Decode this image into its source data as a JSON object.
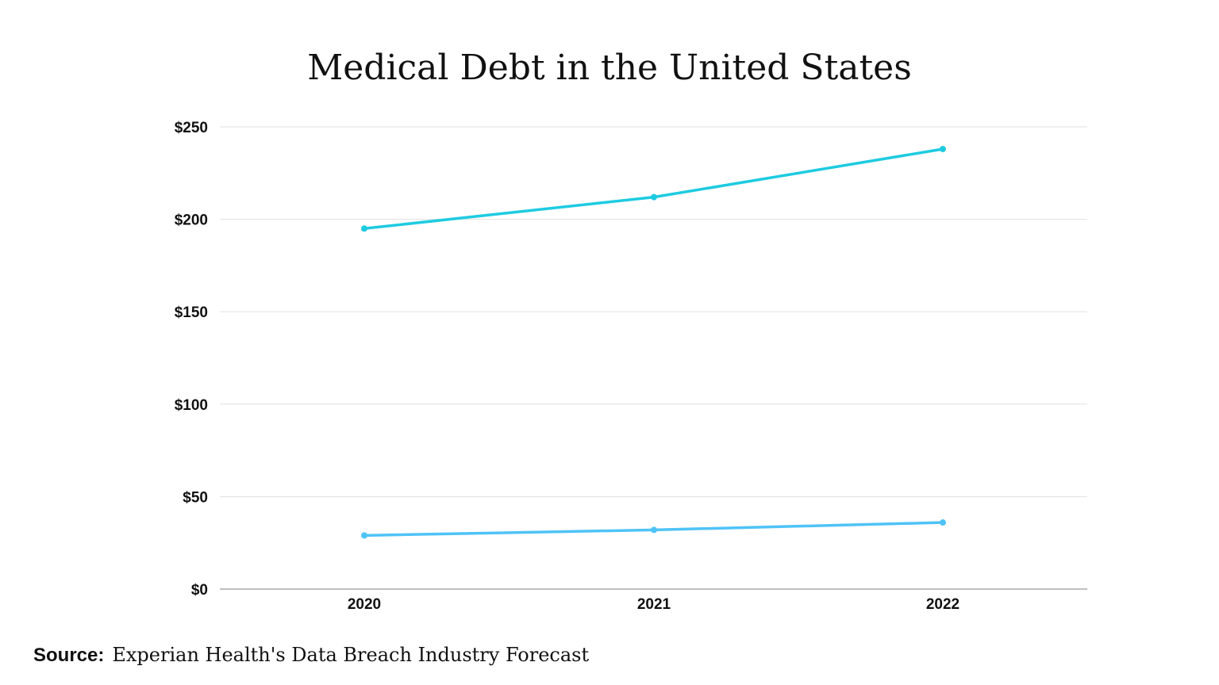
{
  "chart_data": {
    "type": "line",
    "title": "Medical Debt in the United States",
    "xlabel": "",
    "ylabel": "",
    "categories": [
      "2020",
      "2021",
      "2022"
    ],
    "ylim": [
      0,
      250
    ],
    "yticks": [
      0,
      50,
      100,
      150,
      200,
      250
    ],
    "ytick_labels": [
      "$0",
      "$50",
      "$100",
      "$150",
      "$200",
      "$250"
    ],
    "grid": true,
    "legend": "none",
    "series": [
      {
        "values": [
          195,
          212,
          238
        ],
        "color": "#1ecbe1"
      },
      {
        "values": [
          29,
          32,
          36
        ],
        "color": "#4fc3f7"
      }
    ]
  },
  "source": {
    "label": "Source:",
    "text": "Experian Health's Data Breach Industry Forecast"
  }
}
